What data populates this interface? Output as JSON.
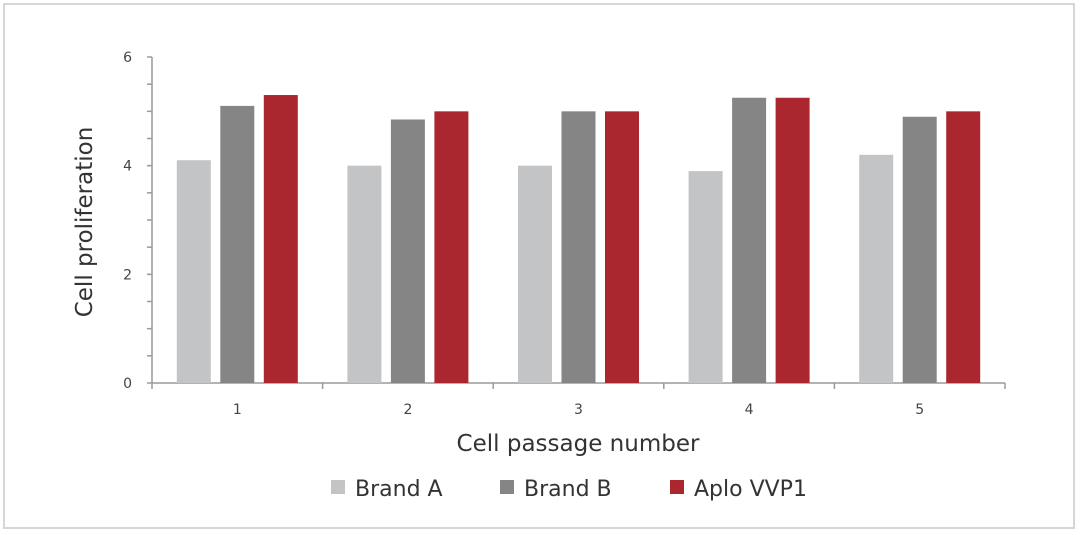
{
  "chart_data": {
    "type": "bar",
    "title": "",
    "xlabel": "Cell passage number",
    "ylabel": "Cell proliferation",
    "categories": [
      "1",
      "2",
      "3",
      "4",
      "5"
    ],
    "ylim": [
      0,
      6
    ],
    "yticks": [
      0,
      2,
      4,
      6
    ],
    "grid": false,
    "legend_position": "bottom",
    "series": [
      {
        "name": "Brand A",
        "color": "#c3c4c6",
        "values": [
          4.1,
          4.0,
          4.0,
          3.9,
          4.2
        ]
      },
      {
        "name": "Brand B",
        "color": "#858585",
        "values": [
          5.1,
          4.85,
          5.0,
          5.25,
          4.9
        ]
      },
      {
        "name": "Aplo VVP1",
        "color": "#ab2730",
        "values": [
          5.3,
          5.0,
          5.0,
          5.25,
          5.0
        ]
      }
    ]
  }
}
